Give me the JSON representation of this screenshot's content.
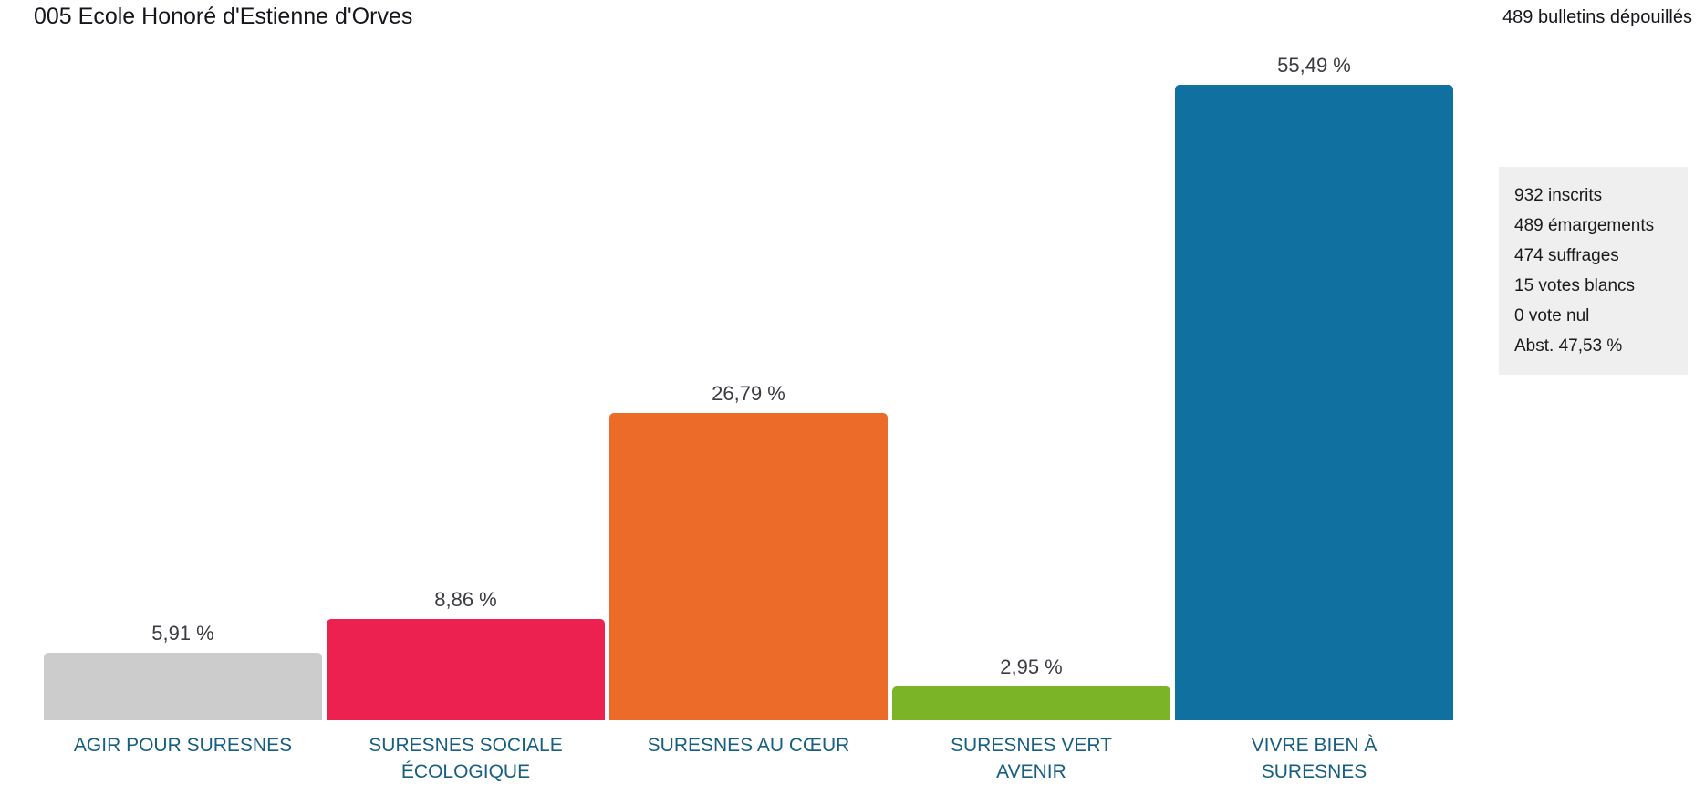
{
  "header": {
    "title": "005 Ecole Honoré d'Estienne d'Orves",
    "ballots_counted": "489 bulletins dépouillés"
  },
  "chart_data": {
    "type": "bar",
    "title": "005 Ecole Honoré d'Estienne d'Orves",
    "categories": [
      "AGIR POUR SURESNES",
      "SURESNES SOCIALE ÉCOLOGIQUE",
      "SURESNES AU CŒUR",
      "SURESNES VERT AVENIR",
      "VIVRE BIEN À SURESNES"
    ],
    "category_display": [
      "AGIR POUR SURESNES",
      "SURESNES SOCIALE\nÉCOLOGIQUE",
      "SURESNES AU CŒUR",
      "SURESNES VERT\nAVENIR",
      "VIVRE BIEN À\nSURESNES"
    ],
    "values": [
      5.91,
      8.86,
      26.79,
      2.95,
      55.49
    ],
    "value_labels": [
      "5,91 %",
      "8,86 %",
      "26,79 %",
      "2,95 %",
      "55,49 %"
    ],
    "colors": [
      "#cccccc",
      "#ed2150",
      "#ec6b28",
      "#7cb427",
      "#10709f"
    ],
    "unit": "%",
    "ylim": [
      0,
      55.49
    ],
    "grid": false,
    "legend": false,
    "xlabel": "",
    "ylabel": ""
  },
  "stats_panel": {
    "lines": [
      "932 inscrits",
      "489 émargements",
      "474 suffrages",
      "15 votes blancs",
      "0 vote nul",
      "Abst. 47,53 %"
    ]
  },
  "theme": {
    "value_text": "#3b3b44",
    "category_text": "#175e81",
    "panel_bg": "#efefef",
    "title_text": "#15151c"
  }
}
